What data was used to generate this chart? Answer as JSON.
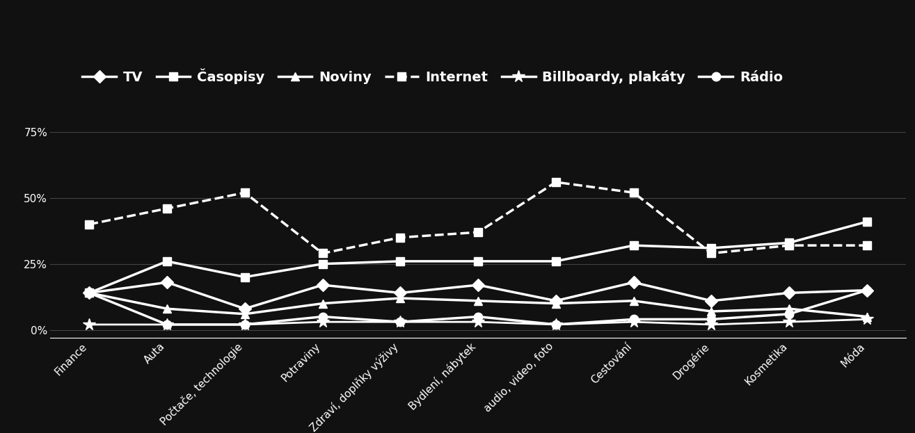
{
  "categories": [
    "Finance",
    "Auta",
    "Počtače, technologie",
    "Potraviny",
    "Zdraví, doplňky výživy",
    "Bydlení, nábytek",
    "audio, video, foto",
    "Cestování",
    "Drogérie",
    "Kosmetika",
    "Móda"
  ],
  "series_order": [
    "TV",
    "Časopisy",
    "Noviny",
    "Internet",
    "Billboardy, plakáty",
    "Rádio"
  ],
  "series": {
    "TV": [
      14,
      18,
      8,
      17,
      14,
      17,
      11,
      18,
      11,
      14,
      15
    ],
    "Časopisy": [
      14,
      26,
      20,
      25,
      26,
      26,
      26,
      32,
      31,
      33,
      41
    ],
    "Noviny": [
      14,
      8,
      6,
      10,
      12,
      11,
      10,
      11,
      7,
      8,
      5
    ],
    "Internet": [
      40,
      46,
      52,
      29,
      35,
      37,
      56,
      52,
      29,
      32,
      32
    ],
    "Billboardy, plakáty": [
      2,
      2,
      2,
      3,
      3,
      3,
      2,
      3,
      2,
      3,
      4
    ],
    "Rádio": [
      14,
      2,
      2,
      5,
      3,
      5,
      2,
      4,
      4,
      6,
      15
    ]
  },
  "markers": {
    "TV": "D",
    "Časopisy": "s",
    "Noviny": "^",
    "Internet": "s",
    "Billboardy, plakáty": "*",
    "Rádio": "o"
  },
  "linestyles": {
    "TV": "-",
    "Časopisy": "-",
    "Noviny": "-",
    "Internet": "--",
    "Billboardy, plakáty": "-",
    "Rádio": "-"
  },
  "marker_sizes": {
    "TV": 9,
    "Časopisy": 9,
    "Noviny": 9,
    "Internet": 9,
    "Billboardy, plakáty": 13,
    "Rádio": 9
  },
  "line_widths": {
    "TV": 2.5,
    "Časopisy": 2.5,
    "Noviny": 2.5,
    "Internet": 2.5,
    "Billboardy, plakáty": 2.0,
    "Rádio": 2.5
  },
  "yticks": [
    0,
    25,
    50,
    75
  ],
  "ytick_labels": [
    "0%",
    "25%",
    "50%",
    "75%"
  ],
  "ylim": [
    -3,
    75
  ],
  "background_color": "#111111",
  "text_color": "#ffffff",
  "grid_color": "#444444",
  "legend_fontsize": 14,
  "tick_fontsize": 11,
  "figsize": [
    13.15,
    6.23
  ]
}
